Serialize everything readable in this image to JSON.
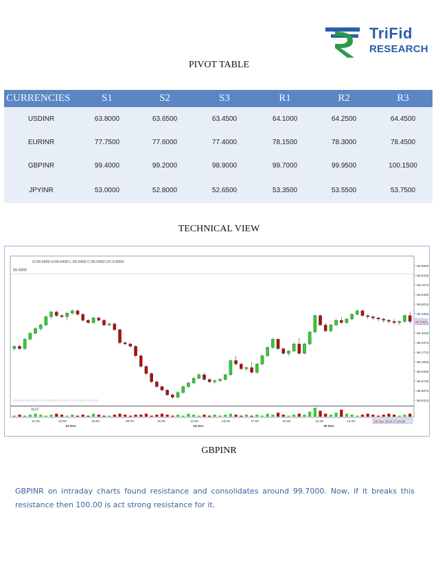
{
  "logo": {
    "line1": "TriFid",
    "line2": "RESEARCH",
    "brand_color": "#2a5fa8",
    "icon": "rupee-icon"
  },
  "pivot": {
    "title": "PIVOT TABLE",
    "headers": [
      "CURRENCIES",
      "S1",
      "S2",
      "S3",
      "R1",
      "R2",
      "R3"
    ],
    "rows": [
      [
        "USDINR",
        "63.8000",
        "63.6500",
        "63.4500",
        "64.1000",
        "64.2500",
        "64.4500"
      ],
      [
        "EURINR",
        "77.7500",
        "77.6000",
        "77.4000",
        "78.1500",
        "78.3000",
        "78.4500"
      ],
      [
        "GBPINR",
        "99.4000",
        "99.2000",
        "98.9000",
        "99.7000",
        "99.9500",
        "100.1500"
      ],
      [
        "JPYINR",
        "53.0000",
        "52.8000",
        "52.6500",
        "53.3500",
        "53.5500",
        "53.7500"
      ]
    ],
    "header_color": "#5b86c4",
    "row_color": "#e8eef7"
  },
  "technical": {
    "title": "TECHNICAL VIEW"
  },
  "chart_data": {
    "type": "candlestick",
    "symbol": "GBPINR",
    "ohlc_readout": "O:99.5400  H:99.5400  L:99.5400  C:99.5400  UC:0.0000",
    "top_left_value": "99.6800",
    "watermark": "@forexPulse,SEE,CUR,GBPINR,26-DEC-2014,Value:1 Month",
    "y_ticks": [
      "99.8993",
      "99.8333",
      "99.7673",
      "99.5400",
      "99.5013",
      "99.4353",
      "99.3693",
      "99.3033",
      "99.2373",
      "99.1713",
      "99.1053",
      "99.0393",
      "98.9733",
      "98.9073",
      "98.8413"
    ],
    "last_price_label": "99.5400",
    "ylim": [
      98.84,
      99.93
    ],
    "x_ticks": [
      "11:00",
      "13:00",
      "15:00",
      "09:00",
      "11:00",
      "13:00",
      "15:00",
      "17:00",
      "10:45",
      "12:45",
      "14:45"
    ],
    "date_labels": [
      "23 Dec",
      "24 Dec",
      "26 Dec"
    ],
    "date_readout": "26 Dec 2014 17:00:00",
    "volume_label": "Vol 0",
    "up_color": "#33cc33",
    "down_color": "#b01010",
    "candles": [
      [
        99.31,
        99.34,
        99.29,
        99.33
      ],
      [
        99.33,
        99.34,
        99.3,
        99.31
      ],
      [
        99.31,
        99.4,
        99.3,
        99.39
      ],
      [
        99.39,
        99.45,
        99.38,
        99.44
      ],
      [
        99.44,
        99.49,
        99.43,
        99.48
      ],
      [
        99.48,
        99.52,
        99.46,
        99.51
      ],
      [
        99.51,
        99.59,
        99.5,
        99.58
      ],
      [
        99.58,
        99.63,
        99.56,
        99.62
      ],
      [
        99.62,
        99.63,
        99.58,
        99.59
      ],
      [
        99.59,
        99.6,
        99.57,
        99.58
      ],
      [
        99.58,
        99.62,
        99.55,
        99.61
      ],
      [
        99.61,
        99.64,
        99.6,
        99.63
      ],
      [
        99.63,
        99.64,
        99.59,
        99.6
      ],
      [
        99.6,
        99.61,
        99.54,
        99.55
      ],
      [
        99.55,
        99.56,
        99.52,
        99.53
      ],
      [
        99.53,
        99.58,
        99.52,
        99.57
      ],
      [
        99.57,
        99.58,
        99.54,
        99.55
      ],
      [
        99.55,
        99.56,
        99.5,
        99.51
      ],
      [
        99.51,
        99.53,
        99.5,
        99.52
      ],
      [
        99.52,
        99.53,
        99.46,
        99.47
      ],
      [
        99.47,
        99.48,
        99.35,
        99.36
      ],
      [
        99.36,
        99.37,
        99.34,
        99.35
      ],
      [
        99.35,
        99.36,
        99.32,
        99.33
      ],
      [
        99.33,
        99.34,
        99.24,
        99.25
      ],
      [
        99.25,
        99.26,
        99.15,
        99.16
      ],
      [
        99.16,
        99.17,
        99.09,
        99.1
      ],
      [
        99.1,
        99.11,
        99.02,
        99.03
      ],
      [
        99.03,
        99.04,
        98.98,
        98.99
      ],
      [
        98.99,
        99.0,
        98.95,
        98.96
      ],
      [
        98.96,
        98.97,
        98.91,
        98.92
      ],
      [
        98.92,
        98.93,
        98.89,
        98.9
      ],
      [
        98.9,
        98.95,
        98.89,
        98.94
      ],
      [
        98.94,
        99.0,
        98.93,
        98.99
      ],
      [
        98.99,
        99.03,
        98.98,
        99.02
      ],
      [
        99.02,
        99.07,
        99.01,
        99.06
      ],
      [
        99.06,
        99.1,
        99.05,
        99.09
      ],
      [
        99.09,
        99.11,
        99.04,
        99.05
      ],
      [
        99.05,
        99.06,
        99.02,
        99.03
      ],
      [
        99.03,
        99.05,
        99.01,
        99.04
      ],
      [
        99.04,
        99.06,
        99.03,
        99.05
      ],
      [
        99.05,
        99.1,
        99.04,
        99.09
      ],
      [
        99.09,
        99.22,
        99.08,
        99.21
      ],
      [
        99.21,
        99.25,
        99.17,
        99.18
      ],
      [
        99.18,
        99.19,
        99.13,
        99.14
      ],
      [
        99.14,
        99.16,
        99.12,
        99.15
      ],
      [
        99.15,
        99.2,
        99.1,
        99.11
      ],
      [
        99.11,
        99.19,
        99.1,
        99.18
      ],
      [
        99.18,
        99.26,
        99.17,
        99.25
      ],
      [
        99.25,
        99.33,
        99.24,
        99.32
      ],
      [
        99.32,
        99.4,
        99.31,
        99.39
      ],
      [
        99.39,
        99.4,
        99.3,
        99.31
      ],
      [
        99.31,
        99.32,
        99.26,
        99.27
      ],
      [
        99.27,
        99.3,
        99.25,
        99.29
      ],
      [
        99.29,
        99.36,
        99.28,
        99.35
      ],
      [
        99.35,
        99.4,
        99.26,
        99.27
      ],
      [
        99.27,
        99.36,
        99.26,
        99.35
      ],
      [
        99.35,
        99.46,
        99.34,
        99.45
      ],
      [
        99.45,
        99.6,
        99.44,
        99.59
      ],
      [
        99.59,
        99.6,
        99.5,
        99.51
      ],
      [
        99.51,
        99.53,
        99.45,
        99.46
      ],
      [
        99.46,
        99.52,
        99.45,
        99.51
      ],
      [
        99.51,
        99.56,
        99.5,
        99.55
      ],
      [
        99.55,
        99.58,
        99.52,
        99.53
      ],
      [
        99.53,
        99.57,
        99.52,
        99.56
      ],
      [
        99.56,
        99.61,
        99.55,
        99.6
      ],
      [
        99.6,
        99.64,
        99.59,
        99.63
      ],
      [
        99.63,
        99.64,
        99.58,
        99.59
      ],
      [
        99.59,
        99.6,
        99.56,
        99.58
      ],
      [
        99.58,
        99.59,
        99.55,
        99.57
      ],
      [
        99.57,
        99.58,
        99.54,
        99.56
      ],
      [
        99.56,
        99.57,
        99.53,
        99.55
      ],
      [
        99.55,
        99.56,
        99.52,
        99.54
      ],
      [
        99.54,
        99.56,
        99.51,
        99.53
      ],
      [
        99.53,
        99.55,
        99.51,
        99.54
      ],
      [
        99.54,
        99.6,
        99.53,
        99.59
      ],
      [
        99.59,
        99.62,
        99.52,
        99.54
      ]
    ],
    "volumes": [
      1,
      2,
      1,
      2,
      3,
      2,
      1,
      2,
      3,
      2,
      1,
      2,
      1,
      2,
      1,
      3,
      2,
      1,
      1,
      2,
      3,
      2,
      1,
      2,
      2,
      3,
      1,
      2,
      3,
      2,
      1,
      2,
      1,
      3,
      2,
      1,
      2,
      1,
      2,
      1,
      2,
      3,
      2,
      1,
      2,
      1,
      2,
      1,
      3,
      2,
      4,
      2,
      1,
      2,
      3,
      2,
      5,
      9,
      6,
      3,
      2,
      4,
      7,
      3,
      2,
      1,
      2,
      3,
      2,
      1,
      2,
      3,
      2,
      1,
      2,
      3
    ]
  },
  "gbpinr": {
    "title": "GBPINR",
    "text": "GBPINR on intraday charts found resistance and consolidates around 99.7000. Now, if it breaks this resistance then 100.00 is act strong resistance for it."
  }
}
